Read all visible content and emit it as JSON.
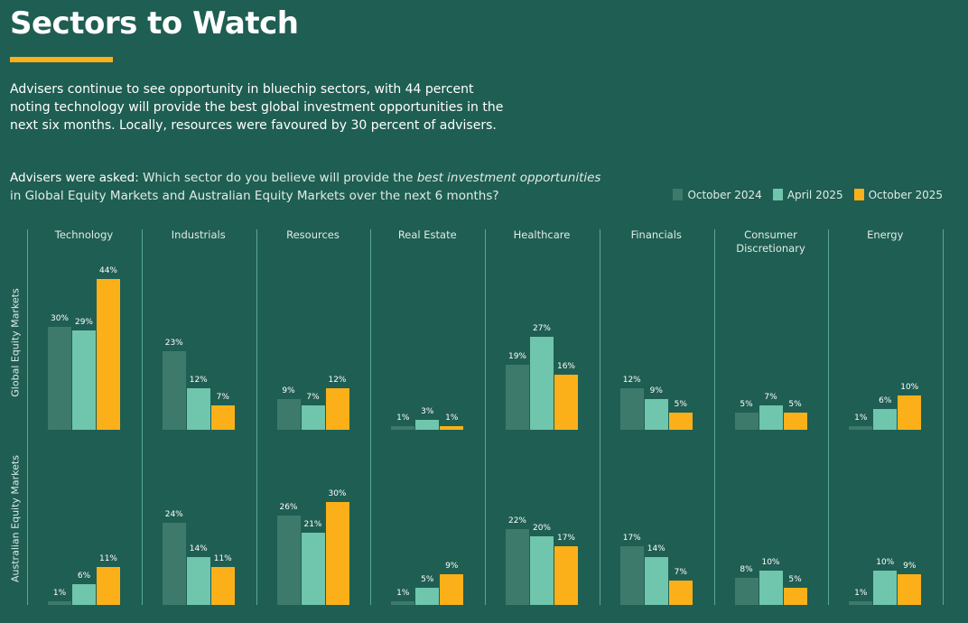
{
  "title": "Sectors to Watch",
  "intro": "Advisers continue to see opportunity in bluechip sectors, with 44 percent noting technology will provide the best global investment opportunities in the next six months. Locally, resources were favoured by 30 percent of advisers.",
  "question": {
    "lead": "Advisers were asked:",
    "text1": " Which sector do you believe will provide the ",
    "emph": "best investment opportunities",
    "text2": " in Global Equity Markets and Australian Equity Markets over the next 6 months?"
  },
  "chart_data": {
    "type": "bar",
    "categories": [
      "Technology",
      "Industrials",
      "Resources",
      "Real Estate",
      "Healthcare",
      "Financials",
      "Consumer Discretionary",
      "Energy"
    ],
    "legend_position": "top-right",
    "unit": "%",
    "panels": [
      {
        "label": "Global Equity Markets",
        "series": [
          {
            "name": "October 2024",
            "color": "#3e7a6c",
            "values": [
              30,
              23,
              9,
              1,
              19,
              12,
              5,
              1
            ]
          },
          {
            "name": "April 2025",
            "color": "#6fc6ac",
            "values": [
              29,
              12,
              7,
              3,
              27,
              9,
              7,
              6
            ]
          },
          {
            "name": "October 2025",
            "color": "#fbb01a",
            "values": [
              44,
              7,
              12,
              1,
              16,
              5,
              5,
              10
            ]
          }
        ]
      },
      {
        "label": "Australian Equity Markets",
        "series": [
          {
            "name": "October 2024",
            "color": "#3e7a6c",
            "values": [
              1,
              24,
              26,
              1,
              22,
              17,
              8,
              1
            ]
          },
          {
            "name": "April 2025",
            "color": "#6fc6ac",
            "values": [
              6,
              14,
              21,
              5,
              20,
              14,
              10,
              10
            ]
          },
          {
            "name": "October 2025",
            "color": "#fbb01a",
            "values": [
              11,
              11,
              30,
              9,
              17,
              7,
              5,
              9
            ]
          }
        ]
      }
    ]
  }
}
